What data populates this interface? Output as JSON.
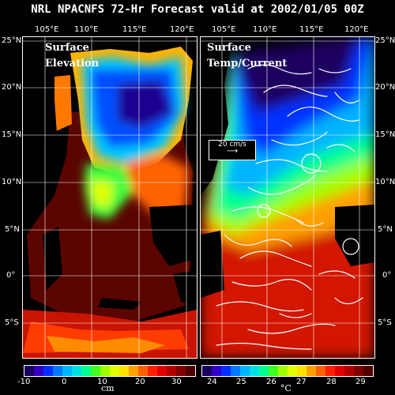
{
  "title": "NRL NPACNFS 72-Hr Forecast valid at 2002/01/05 00Z",
  "panels": [
    {
      "label_line1": "Surface",
      "label_line2": "Elevation"
    },
    {
      "label_line1": "Surface",
      "label_line2": "Temp/Current"
    }
  ],
  "lon_labels": [
    "105°E",
    "110°E",
    "115°E",
    "120°E"
  ],
  "lat_labels": [
    "25°N",
    "20°N",
    "15°N",
    "10°N",
    "5°N",
    "0°",
    "5°S"
  ],
  "velocity_scale": "20 cm/s",
  "colorbar_left": {
    "ticks": [
      "-10",
      "0",
      "10",
      "20",
      "30"
    ],
    "unit": "cm",
    "colors": [
      "#1a0060",
      "#3300c8",
      "#0030ff",
      "#0078ff",
      "#00b4ff",
      "#00e0e0",
      "#00ff90",
      "#40ff20",
      "#a0ff00",
      "#e0ff00",
      "#ffe000",
      "#ffa000",
      "#ff6000",
      "#ff2000",
      "#e00000",
      "#b00000",
      "#800000",
      "#500000"
    ]
  },
  "colorbar_right": {
    "ticks": [
      "24",
      "25",
      "26",
      "27",
      "28",
      "29"
    ],
    "unit": "°C",
    "colors": [
      "#1a0060",
      "#3300c8",
      "#0030ff",
      "#0078ff",
      "#00b4ff",
      "#00e0e0",
      "#00ff90",
      "#40ff20",
      "#a0ff00",
      "#e0ff00",
      "#ffe000",
      "#ffa000",
      "#ff6000",
      "#ff2000",
      "#e00000",
      "#b00000",
      "#800000",
      "#500000"
    ]
  }
}
